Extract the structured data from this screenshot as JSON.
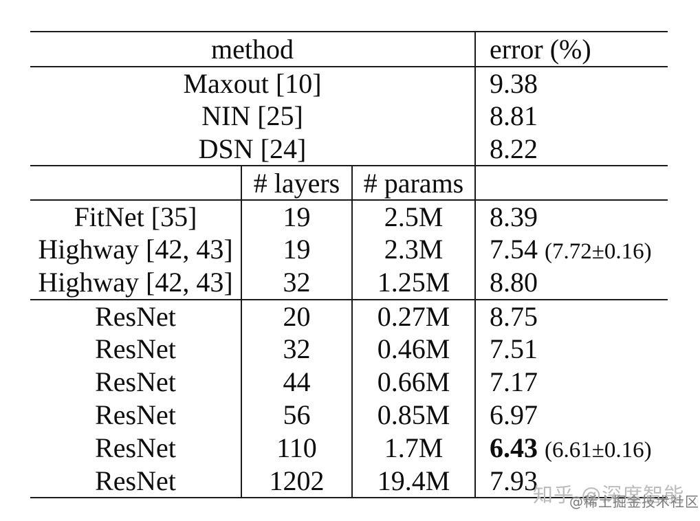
{
  "table": {
    "header": {
      "method": "method",
      "error": "error (%)"
    },
    "subheader": {
      "layers": "# layers",
      "params": "# params"
    },
    "section1": [
      {
        "method": "Maxout [10]",
        "error": "9.38"
      },
      {
        "method": "NIN [25]",
        "error": "8.81"
      },
      {
        "method": "DSN [24]",
        "error": "8.22"
      }
    ],
    "section2": [
      {
        "method": "FitNet [35]",
        "layers": "19",
        "params": "2.5M",
        "error": "8.39",
        "error_note": ""
      },
      {
        "method": "Highway [42, 43]",
        "layers": "19",
        "params": "2.3M",
        "error": "7.54",
        "error_note": "(7.72±0.16)"
      },
      {
        "method": "Highway [42, 43]",
        "layers": "32",
        "params": "1.25M",
        "error": "8.80",
        "error_note": ""
      }
    ],
    "section3": [
      {
        "method": "ResNet",
        "layers": "20",
        "params": "0.27M",
        "error": "8.75",
        "error_note": ""
      },
      {
        "method": "ResNet",
        "layers": "32",
        "params": "0.46M",
        "error": "7.51",
        "error_note": ""
      },
      {
        "method": "ResNet",
        "layers": "44",
        "params": "0.66M",
        "error": "7.17",
        "error_note": ""
      },
      {
        "method": "ResNet",
        "layers": "56",
        "params": "0.85M",
        "error": "6.97",
        "error_note": ""
      },
      {
        "method": "ResNet",
        "layers": "110",
        "params": "1.7M",
        "error": "6.43",
        "error_note": "(6.61±0.16)"
      },
      {
        "method": "ResNet",
        "layers": "1202",
        "params": "19.4M",
        "error": "7.93",
        "error_note": ""
      }
    ]
  },
  "watermarks": {
    "primary": "知乎 @深度智能",
    "secondary": "@稀土掘金技术社区"
  }
}
